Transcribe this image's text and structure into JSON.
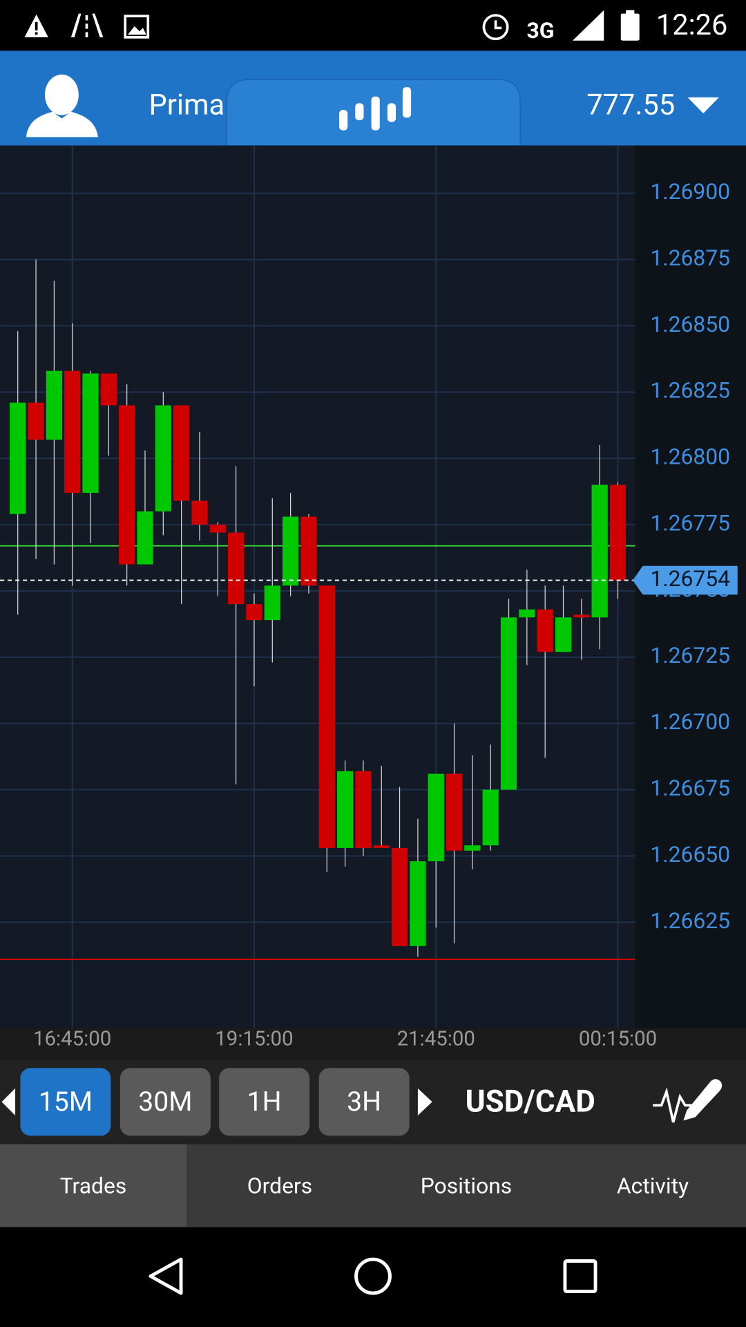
{
  "status_bar": {
    "network": "3G",
    "time": "12:26"
  },
  "header": {
    "account": "Prima",
    "balance": "777.55"
  },
  "chart_data": {
    "type": "candlestick",
    "categories": [
      null,
      null,
      null,
      "16:45:00",
      null,
      null,
      null,
      null,
      null,
      null,
      null,
      null,
      null,
      "19:15:00",
      null,
      null,
      null,
      null,
      null,
      null,
      null,
      null,
      null,
      "21:45:00",
      null,
      null,
      null,
      null,
      null,
      null,
      null,
      null,
      null,
      "00:15:00"
    ],
    "open": [
      1.26779,
      1.26821,
      1.26807,
      1.26833,
      1.26787,
      1.26832,
      1.2682,
      1.2676,
      1.2678,
      1.2682,
      1.26784,
      1.26775,
      1.26772,
      1.26745,
      1.26739,
      1.26752,
      1.26778,
      1.26752,
      1.26653,
      1.26682,
      1.26654,
      1.26653,
      1.26616,
      1.26648,
      1.26681,
      1.26652,
      1.26654,
      1.26675,
      1.2674,
      1.26743,
      1.26727,
      1.26741,
      1.2674,
      1.2679
    ],
    "high": [
      1.26848,
      1.26875,
      1.26867,
      1.26851,
      1.26833,
      1.26832,
      1.26828,
      1.26803,
      1.26825,
      1.2682,
      1.2681,
      1.26776,
      1.26797,
      1.26749,
      1.26785,
      1.26787,
      1.26779,
      1.26752,
      1.26686,
      1.26686,
      1.26684,
      1.26676,
      1.26664,
      1.26681,
      1.267,
      1.26688,
      1.26692,
      1.26747,
      1.26758,
      1.26752,
      1.26752,
      1.26747,
      1.26805,
      1.26791
    ],
    "low": [
      1.26741,
      1.26762,
      1.2676,
      1.26752,
      1.26768,
      1.26801,
      1.26752,
      1.2676,
      1.26771,
      1.26745,
      1.26769,
      1.26748,
      1.26677,
      1.26714,
      1.26723,
      1.26748,
      1.26749,
      1.26644,
      1.26646,
      1.2665,
      1.26653,
      1.26616,
      1.26612,
      1.26623,
      1.26617,
      1.26645,
      1.26652,
      1.26675,
      1.26722,
      1.26687,
      1.26727,
      1.26724,
      1.26728,
      1.26747
    ],
    "close": [
      1.26821,
      1.26807,
      1.26833,
      1.26787,
      1.26832,
      1.2682,
      1.2676,
      1.2678,
      1.2682,
      1.26784,
      1.26775,
      1.26772,
      1.26745,
      1.26739,
      1.26752,
      1.26778,
      1.26752,
      1.26653,
      1.26682,
      1.26653,
      1.26653,
      1.26616,
      1.26648,
      1.26681,
      1.26652,
      1.26654,
      1.26675,
      1.2674,
      1.26743,
      1.26727,
      1.2674,
      1.2674,
      1.2679,
      1.26754
    ],
    "up_color": "#00c800",
    "down_color": "#d00000",
    "ylim": [
      1.26585,
      1.26918
    ],
    "yticks": [
      1.26625,
      {
        "value": 1.2665,
        "label": "1.26650"
      },
      1.26675,
      {
        "value": 1.267,
        "label": "1.26700"
      },
      1.26725,
      {
        "value": 1.2675,
        "label": "1.26750"
      },
      1.26775,
      {
        "value": 1.268,
        "label": "1.26800"
      },
      1.26825,
      {
        "value": 1.2685,
        "label": "1.26850"
      },
      1.26875,
      {
        "value": 1.269,
        "label": "1.26900"
      }
    ],
    "grid": true,
    "current_price": 1.26754,
    "reference_lines": [
      {
        "value": 1.26767,
        "color": "#33dd33"
      },
      {
        "value": 1.26611,
        "color": "#e00000"
      }
    ]
  },
  "timeframes": [
    {
      "label": "15M",
      "selected": true
    },
    {
      "label": "30M",
      "selected": false
    },
    {
      "label": "1H",
      "selected": false
    },
    {
      "label": "3H",
      "selected": false
    }
  ],
  "symbol": "USD/CAD",
  "tabs": [
    {
      "label": "Trades",
      "selected": true
    },
    {
      "label": "Orders",
      "selected": false
    },
    {
      "label": "Positions",
      "selected": false
    },
    {
      "label": "Activity",
      "selected": false
    }
  ]
}
